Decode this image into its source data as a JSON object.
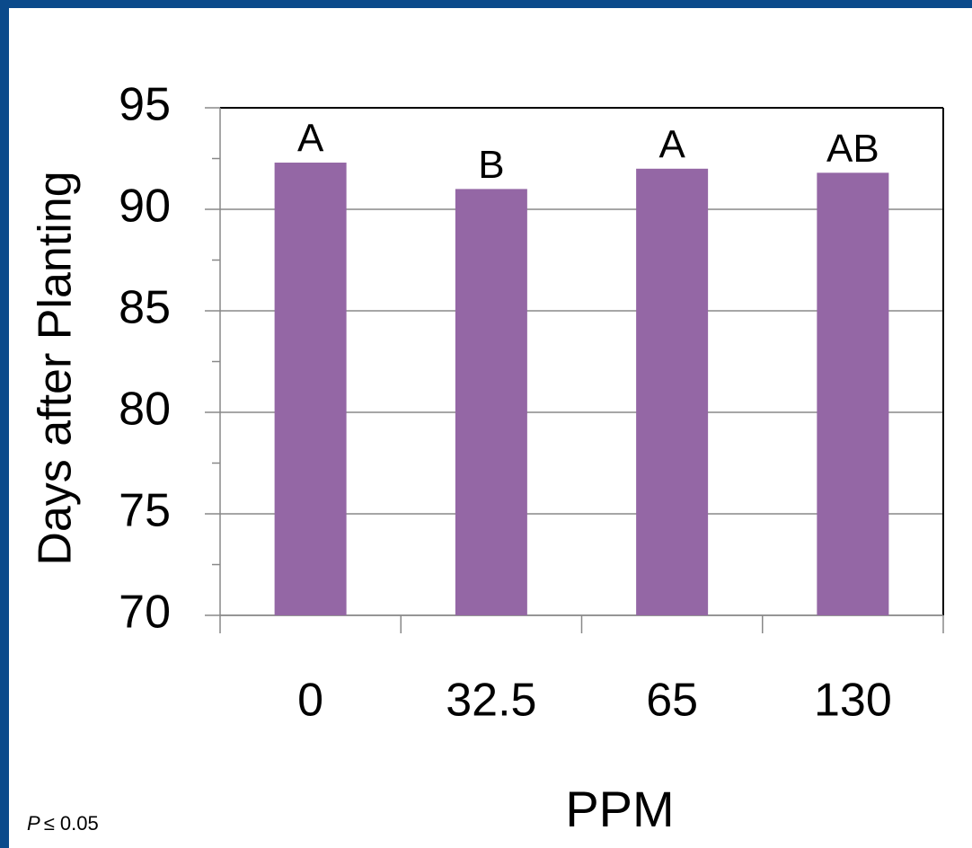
{
  "chart_data": {
    "type": "bar",
    "ylabel": "Days after Planting",
    "xlabel": "PPM",
    "categories": [
      "0",
      "32.5",
      "65",
      "130"
    ],
    "values": [
      92.3,
      91.0,
      92.0,
      91.8
    ],
    "annotations": [
      "A",
      "B",
      "A",
      "AB"
    ],
    "color": "#9467a5",
    "ylim": [
      70,
      95
    ],
    "yticks": [
      70,
      75,
      80,
      85,
      90,
      95
    ],
    "yminor": [
      72.5,
      77.5,
      82.5,
      87.5,
      92.5
    ],
    "grid": true,
    "footnote_symbol": "P",
    "footnote_text": "≤ 0.05"
  }
}
